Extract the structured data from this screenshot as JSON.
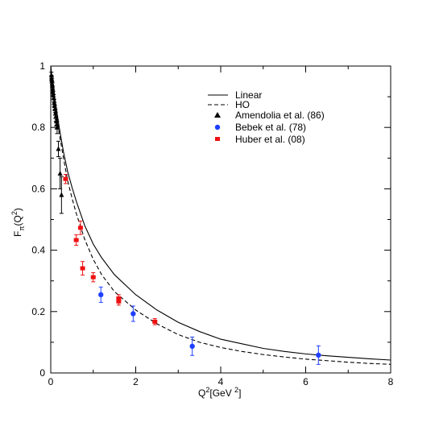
{
  "chart_data": {
    "type": "scatter",
    "title": "",
    "xlabel": "Q",
    "xlabel_sup": "2",
    "xlabel_unit": "[GeV ",
    "xlabel_unit_sup": "2",
    "xlabel_close": "]",
    "ylabel": "F",
    "ylabel_sub": "π",
    "ylabel_arg": "(Q",
    "ylabel_arg_sup": "2",
    "ylabel_arg_close": ")",
    "xlim": [
      0,
      8
    ],
    "ylim": [
      0,
      1
    ],
    "x_ticks": [
      0,
      2,
      4,
      6,
      8
    ],
    "x_tick_labels": [
      "0",
      "2",
      "4",
      "6",
      "8"
    ],
    "y_ticks": [
      0,
      0.2,
      0.4,
      0.6,
      0.8,
      1
    ],
    "y_tick_labels": [
      "0",
      "0.2",
      "0.4",
      "0.6",
      "0.8",
      "1"
    ],
    "grid": false,
    "legend_position": "top-right",
    "curves": [
      {
        "name": "Linear",
        "style": "solid",
        "color": "#000000",
        "x": [
          0,
          0.05,
          0.1,
          0.2,
          0.3,
          0.4,
          0.5,
          0.6,
          0.8,
          1.0,
          1.2,
          1.5,
          2.0,
          2.5,
          3.0,
          3.5,
          4.0,
          4.5,
          5.0,
          5.5,
          6.0,
          6.5,
          7.0,
          7.5,
          8.0
        ],
        "y": [
          1.0,
          0.94,
          0.89,
          0.8,
          0.72,
          0.655,
          0.605,
          0.56,
          0.48,
          0.42,
          0.375,
          0.32,
          0.255,
          0.205,
          0.165,
          0.135,
          0.11,
          0.095,
          0.08,
          0.07,
          0.062,
          0.056,
          0.051,
          0.046,
          0.042
        ]
      },
      {
        "name": "HO",
        "style": "dashed",
        "color": "#000000",
        "x": [
          0,
          0.05,
          0.1,
          0.2,
          0.3,
          0.4,
          0.5,
          0.6,
          0.8,
          1.0,
          1.2,
          1.5,
          2.0,
          2.5,
          3.0,
          3.5,
          4.0,
          4.5,
          5.0,
          5.5,
          6.0,
          6.5,
          7.0,
          7.5,
          8.0
        ],
        "y": [
          1.0,
          0.935,
          0.875,
          0.78,
          0.7,
          0.625,
          0.57,
          0.52,
          0.435,
          0.37,
          0.32,
          0.265,
          0.205,
          0.16,
          0.125,
          0.1,
          0.083,
          0.07,
          0.06,
          0.052,
          0.045,
          0.04,
          0.035,
          0.031,
          0.028
        ]
      }
    ],
    "series": [
      {
        "name": "Amendolia et al. (86)",
        "marker": "triangle",
        "color": "#000000",
        "points": [
          {
            "x": 0.015,
            "y": 0.97,
            "err": 0.01
          },
          {
            "x": 0.02,
            "y": 0.96,
            "err": 0.01
          },
          {
            "x": 0.025,
            "y": 0.955,
            "err": 0.01
          },
          {
            "x": 0.03,
            "y": 0.95,
            "err": 0.01
          },
          {
            "x": 0.035,
            "y": 0.94,
            "err": 0.01
          },
          {
            "x": 0.04,
            "y": 0.935,
            "err": 0.01
          },
          {
            "x": 0.045,
            "y": 0.925,
            "err": 0.01
          },
          {
            "x": 0.05,
            "y": 0.915,
            "err": 0.01
          },
          {
            "x": 0.06,
            "y": 0.905,
            "err": 0.012
          },
          {
            "x": 0.07,
            "y": 0.895,
            "err": 0.012
          },
          {
            "x": 0.08,
            "y": 0.88,
            "err": 0.012
          },
          {
            "x": 0.09,
            "y": 0.87,
            "err": 0.012
          },
          {
            "x": 0.1,
            "y": 0.86,
            "err": 0.012
          },
          {
            "x": 0.11,
            "y": 0.845,
            "err": 0.015
          },
          {
            "x": 0.12,
            "y": 0.835,
            "err": 0.015
          },
          {
            "x": 0.13,
            "y": 0.82,
            "err": 0.015
          },
          {
            "x": 0.14,
            "y": 0.81,
            "err": 0.015
          },
          {
            "x": 0.15,
            "y": 0.8,
            "err": 0.02
          },
          {
            "x": 0.18,
            "y": 0.73,
            "err": 0.025
          },
          {
            "x": 0.22,
            "y": 0.65,
            "err": 0.05
          },
          {
            "x": 0.253,
            "y": 0.58,
            "err": 0.06
          }
        ]
      },
      {
        "name": "Bebek et al. (78)",
        "marker": "circle",
        "color": "#1f3fff",
        "points": [
          {
            "x": 1.18,
            "y": 0.255,
            "err": 0.025
          },
          {
            "x": 1.94,
            "y": 0.193,
            "err": 0.025
          },
          {
            "x": 3.33,
            "y": 0.087,
            "err": 0.03
          },
          {
            "x": 6.3,
            "y": 0.058,
            "err": 0.03
          }
        ]
      },
      {
        "name": "Huber et al. (08)",
        "marker": "square",
        "color": "#ee1111",
        "points": [
          {
            "x": 0.35,
            "y": 0.632,
            "err": 0.015
          },
          {
            "x": 0.6,
            "y": 0.433,
            "err": 0.017
          },
          {
            "x": 0.7,
            "y": 0.473,
            "err": 0.022
          },
          {
            "x": 0.75,
            "y": 0.341,
            "err": 0.022
          },
          {
            "x": 1.0,
            "y": 0.312,
            "err": 0.015
          },
          {
            "x": 1.6,
            "y": 0.243,
            "err": 0.012
          },
          {
            "x": 1.6,
            "y": 0.233,
            "err": 0.012
          },
          {
            "x": 2.45,
            "y": 0.167,
            "err": 0.01
          }
        ]
      }
    ]
  }
}
